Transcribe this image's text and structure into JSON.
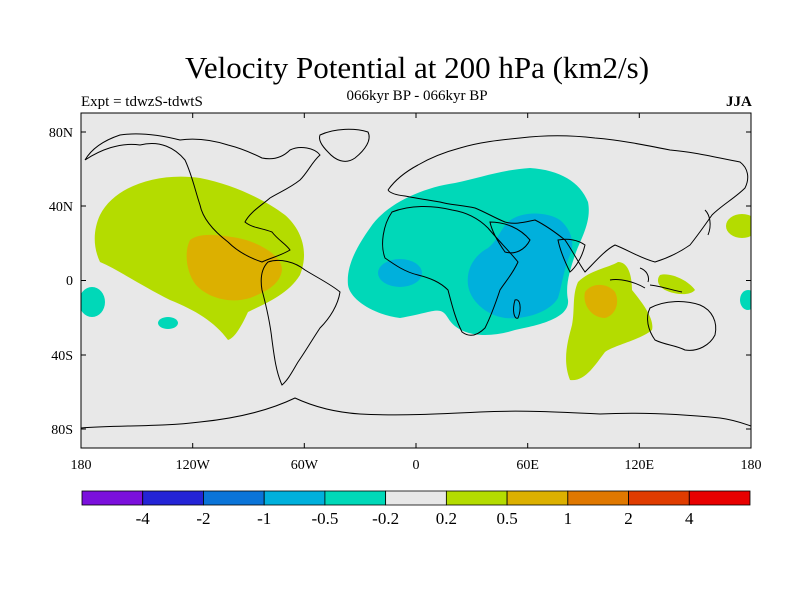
{
  "header": {
    "title": "Velocity Potential at 200 hPa (km2/s)",
    "left": "Expt = tdwzS-tdwtS",
    "center": "066kyr BP - 066kyr BP",
    "right": "JJA"
  },
  "map": {
    "projection": "cylindrical-equidistant",
    "background_color": "#e8e8e8",
    "lon_ticks": [
      "180",
      "120W",
      "60W",
      "0",
      "60E",
      "120E",
      "180"
    ],
    "lat_ticks": [
      "80N",
      "40N",
      "0",
      "40S",
      "80S"
    ]
  },
  "colorbar": {
    "colors": [
      "#7b10dc",
      "#2424d6",
      "#0a74d8",
      "#00b0dc",
      "#00d8b8",
      "#e8e8e8",
      "#b4dc00",
      "#dcb000",
      "#e07800",
      "#e03c00",
      "#e80000"
    ],
    "labels": [
      "-4",
      "-2",
      "-1",
      "-0.5",
      "-0.2",
      "0.2",
      "0.5",
      "1",
      "2",
      "4"
    ]
  }
}
